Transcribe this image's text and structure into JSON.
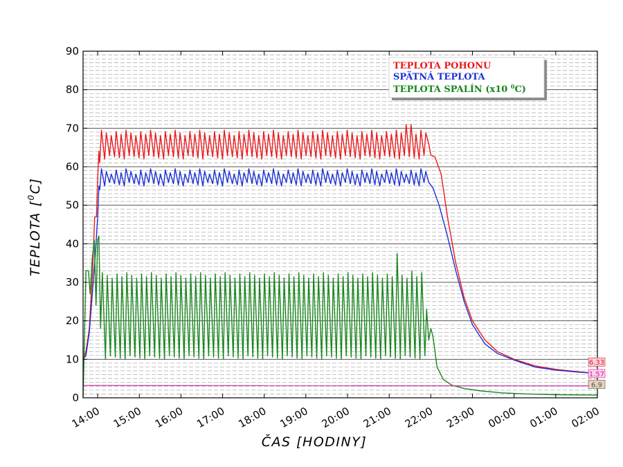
{
  "chart_data": {
    "type": "line",
    "title": "",
    "xlabel": "ČAS [HODINY]",
    "ylabel": "TEPLOTA [0C]",
    "ylabel_parts": {
      "pre": "TEPLOTA [",
      "sup": "0",
      "post": "C]"
    },
    "xlim": [
      13.65,
      26.0
    ],
    "ylim": [
      0,
      90
    ],
    "y_ticks": [
      0,
      10,
      20,
      30,
      40,
      50,
      60,
      70,
      80,
      90
    ],
    "x_ticks": [
      {
        "value": 14,
        "label": "14:00"
      },
      {
        "value": 15,
        "label": "15:00"
      },
      {
        "value": 16,
        "label": "16:00"
      },
      {
        "value": 17,
        "label": "17:00"
      },
      {
        "value": 18,
        "label": "18:00"
      },
      {
        "value": 19,
        "label": "19:00"
      },
      {
        "value": 20,
        "label": "20:00"
      },
      {
        "value": 21,
        "label": "21:00"
      },
      {
        "value": 22,
        "label": "22:00"
      },
      {
        "value": 23,
        "label": "23:00"
      },
      {
        "value": 24,
        "label": "00:00"
      },
      {
        "value": 25,
        "label": "01:00"
      },
      {
        "value": 26,
        "label": "02:00"
      }
    ],
    "grid": "dashed minor + solid major",
    "legend": {
      "position": "top-right",
      "entries": [
        {
          "label": "TEPLOTA POHONU",
          "color": "#e8191c"
        },
        {
          "label": "SPÄTNÁ TEPLOTA",
          "color": "#1c30d4"
        },
        {
          "label": "TEPLOTA SPALÍN (x10 0C)",
          "label_pre": "TEPLOTA SPALÍN (x10 ",
          "label_sup": "0",
          "label_post": "C)",
          "color": "#17861c"
        }
      ]
    },
    "series": [
      {
        "name": "TEPLOTA POHONU",
        "color": "#e8191c",
        "startup": [
          [
            13.65,
            10
          ],
          [
            13.72,
            12
          ],
          [
            13.8,
            18
          ],
          [
            13.88,
            33
          ],
          [
            13.93,
            47
          ],
          [
            13.97,
            47
          ],
          [
            14.0,
            57
          ],
          [
            14.03,
            64
          ],
          [
            14.05,
            61
          ]
        ],
        "oscillation": {
          "start": 14.05,
          "end": 21.95,
          "low": 62,
          "high": 69.5,
          "period": 0.118
        },
        "overrides": [
          [
            21.35,
            71
          ],
          [
            21.5,
            71
          ]
        ],
        "shutdown": [
          [
            21.95,
            66
          ],
          [
            22.0,
            63
          ],
          [
            22.1,
            62.5
          ],
          [
            22.25,
            58
          ],
          [
            22.4,
            47
          ],
          [
            22.6,
            35
          ],
          [
            22.8,
            26
          ],
          [
            23.0,
            20
          ],
          [
            23.3,
            15
          ],
          [
            23.6,
            12
          ],
          [
            24.0,
            10
          ],
          [
            24.5,
            8.3
          ],
          [
            25.0,
            7.4
          ],
          [
            25.5,
            6.8
          ],
          [
            26.0,
            6.3
          ]
        ]
      },
      {
        "name": "SPÄTNÁ TEPLOTA",
        "color": "#1c30d4",
        "startup": [
          [
            13.65,
            10
          ],
          [
            13.72,
            11
          ],
          [
            13.8,
            17
          ],
          [
            13.88,
            28
          ],
          [
            13.95,
            38
          ],
          [
            14.0,
            47
          ],
          [
            14.03,
            55
          ],
          [
            14.05,
            54
          ]
        ],
        "oscillation": {
          "start": 14.05,
          "end": 21.95,
          "low": 55,
          "high": 59.5,
          "period": 0.118
        },
        "overrides": [],
        "shutdown": [
          [
            21.95,
            56
          ],
          [
            22.05,
            54.5
          ],
          [
            22.2,
            50
          ],
          [
            22.4,
            42
          ],
          [
            22.6,
            33
          ],
          [
            22.8,
            25
          ],
          [
            23.0,
            19
          ],
          [
            23.3,
            14
          ],
          [
            23.6,
            11.5
          ],
          [
            24.0,
            9.8
          ],
          [
            24.5,
            8
          ],
          [
            25.0,
            7.2
          ],
          [
            25.5,
            6.7
          ],
          [
            26.0,
            6.3
          ]
        ]
      },
      {
        "name": "TEPLOTA SPALÍN (x10 0C)",
        "color": "#17861c",
        "startup": [
          [
            13.65,
            0
          ],
          [
            13.68,
            14
          ],
          [
            13.72,
            33
          ],
          [
            13.78,
            33
          ],
          [
            13.82,
            27
          ],
          [
            13.87,
            36
          ],
          [
            13.92,
            41
          ],
          [
            13.96,
            24
          ],
          [
            14.0,
            41
          ],
          [
            14.03,
            42
          ],
          [
            14.07,
            18
          ]
        ],
        "oscillation": {
          "start": 14.07,
          "end": 21.95,
          "low": 10,
          "high": 32.5,
          "period": 0.118
        },
        "overrides": [
          [
            21.15,
            37.5
          ],
          [
            21.6,
            33
          ],
          [
            21.85,
            23
          ]
        ],
        "shutdown": [
          [
            21.95,
            15
          ],
          [
            22.0,
            18
          ],
          [
            22.05,
            16
          ],
          [
            22.15,
            8
          ],
          [
            22.3,
            4.8
          ],
          [
            22.5,
            3.3
          ],
          [
            22.8,
            2.4
          ],
          [
            23.2,
            1.8
          ],
          [
            23.7,
            1.3
          ],
          [
            24.3,
            1.0
          ],
          [
            25.0,
            0.8
          ],
          [
            26.0,
            0.7
          ]
        ]
      },
      {
        "name": "baseline",
        "color": "#cc44aa",
        "startup": [
          [
            13.65,
            3.2
          ],
          [
            26.0,
            3.1
          ]
        ],
        "oscillation": null,
        "overrides": [],
        "shutdown": []
      }
    ],
    "end_labels": [
      {
        "text": "6.33",
        "y": 9.3,
        "color": "#cc1a33",
        "fill": "#ffd0d6"
      },
      {
        "text": "1.57",
        "y": 6.3,
        "color": "#cc2299",
        "fill": "#ffd0ea"
      },
      {
        "text": "6.9",
        "y": 3.5,
        "color": "#1a7a1a",
        "fill": "#f9c8c8"
      }
    ]
  }
}
